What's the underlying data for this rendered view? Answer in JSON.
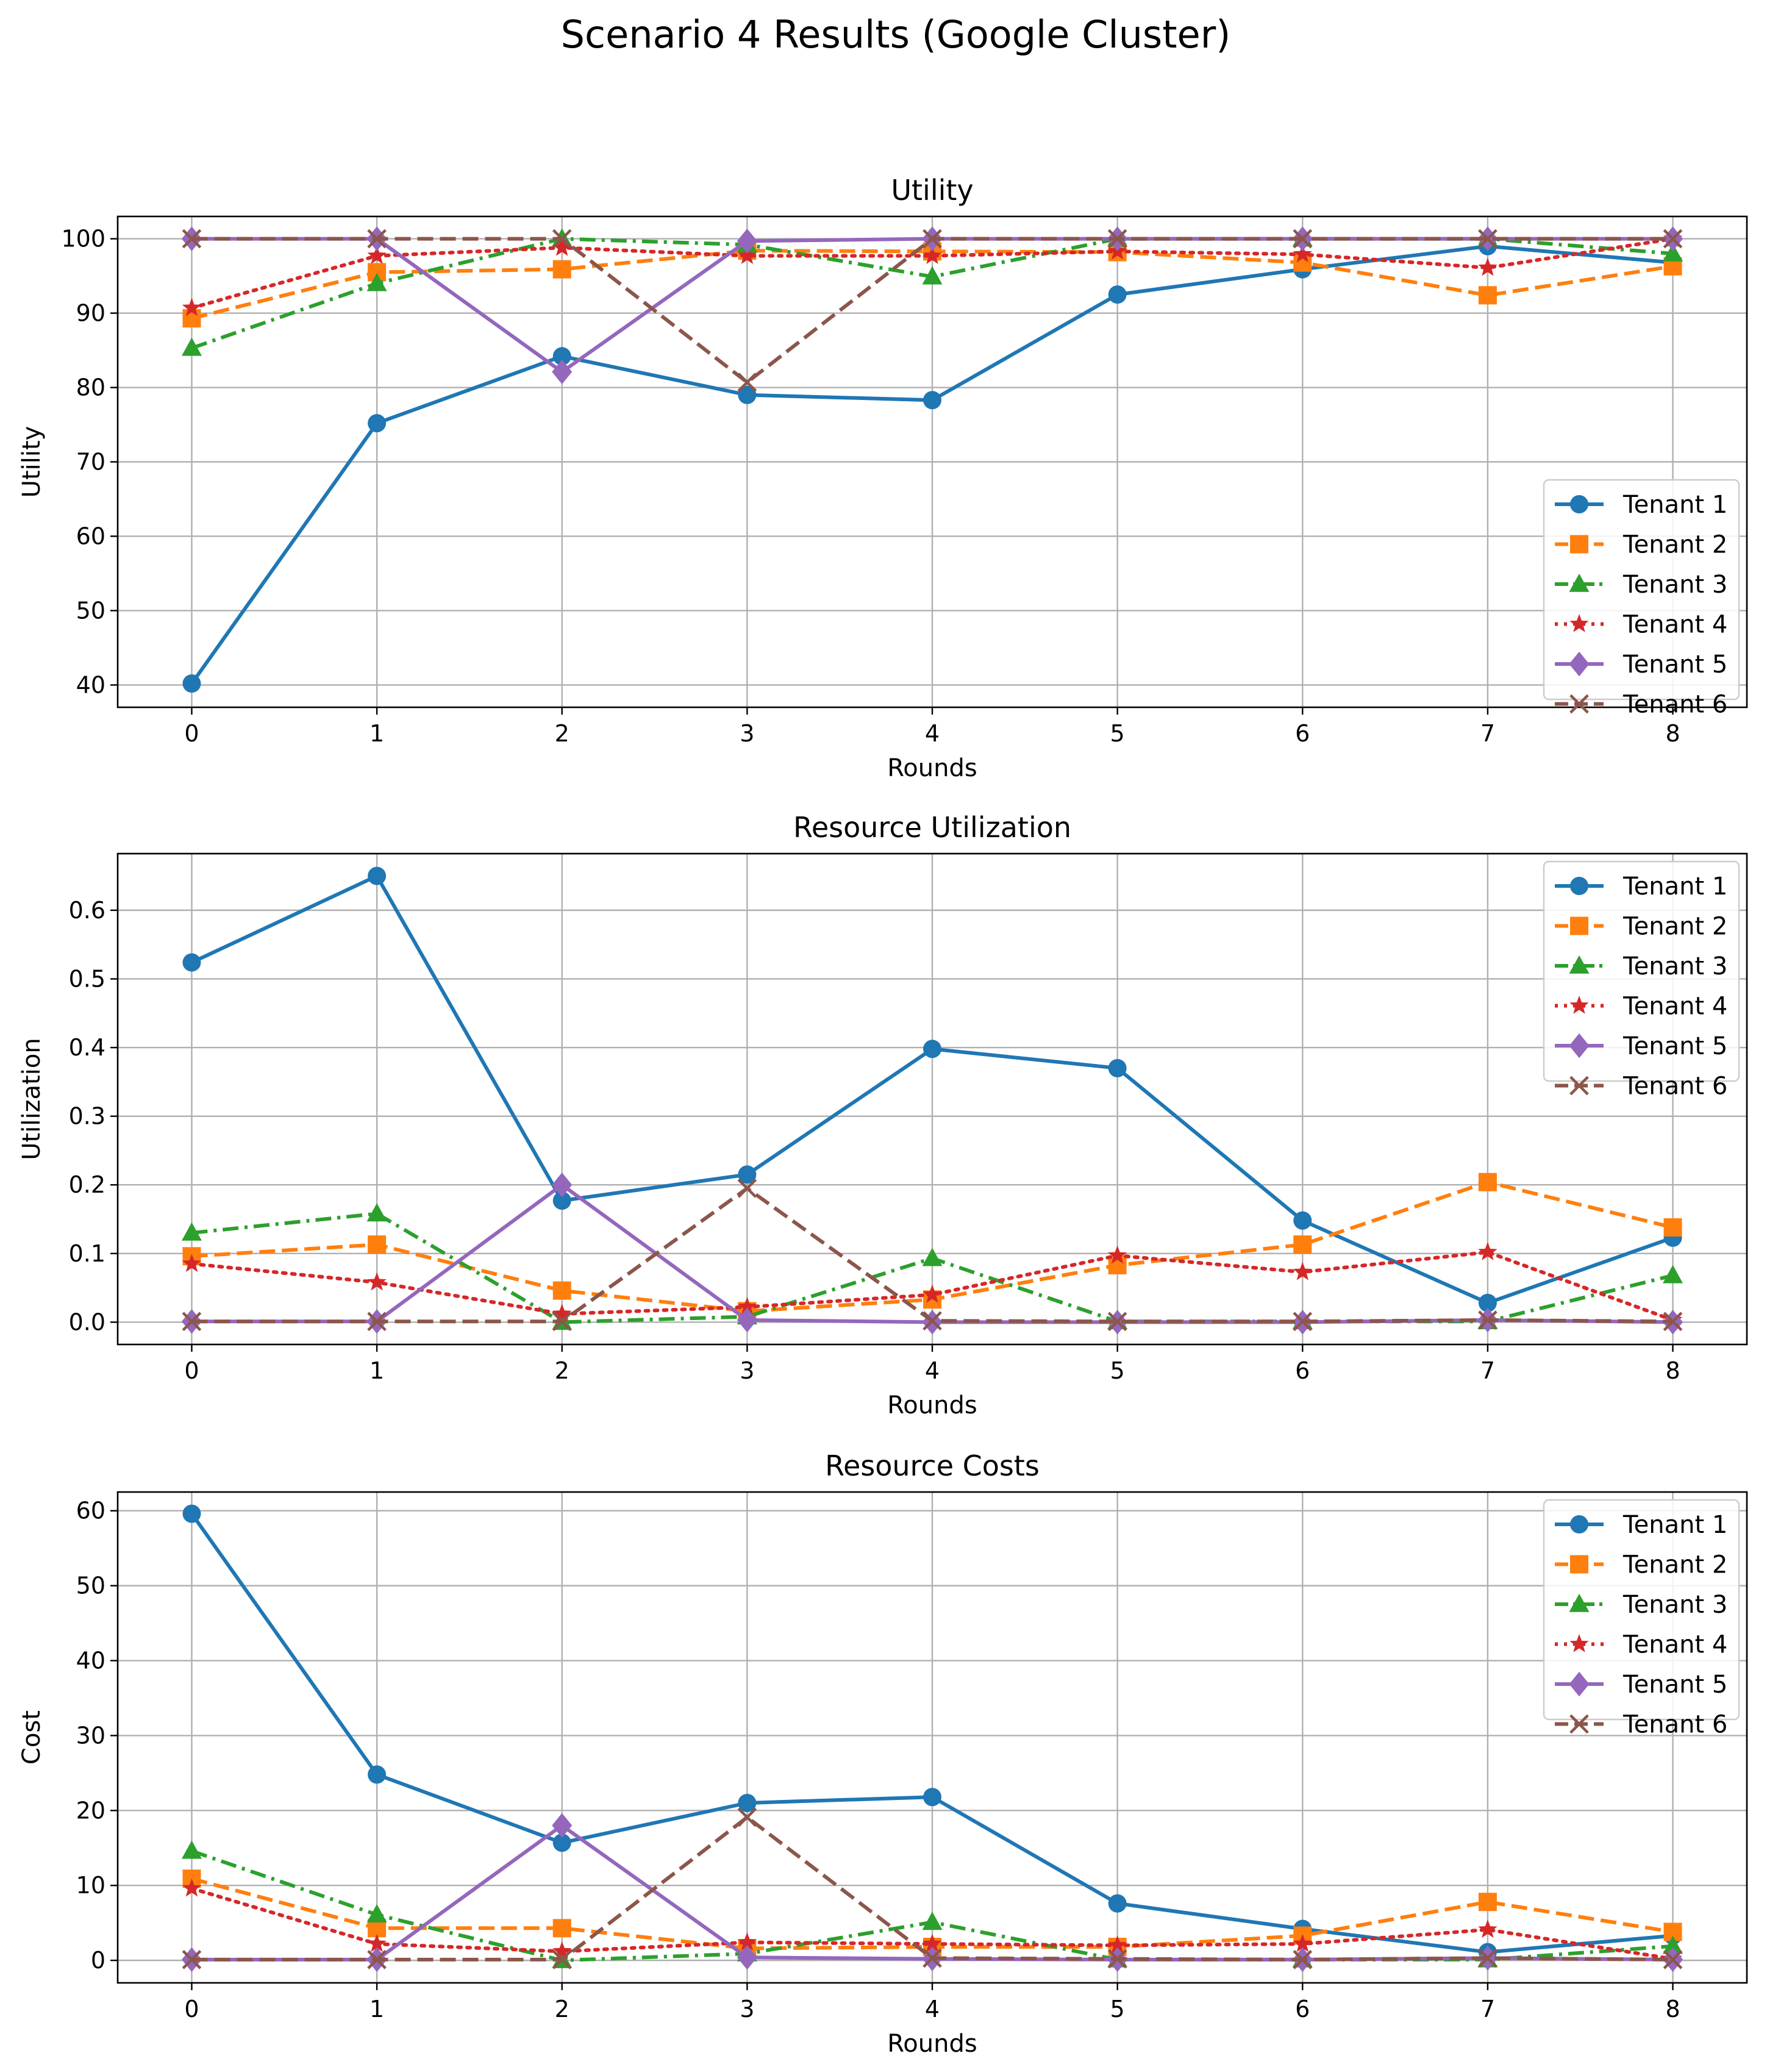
{
  "figure_title": "Scenario 4 Results (Google Cluster)",
  "series_styles": [
    {
      "name": "Tenant 1",
      "color": "#1f77b4",
      "dash": "",
      "marker": "circle"
    },
    {
      "name": "Tenant 2",
      "color": "#ff7f0e",
      "dash": "dashed",
      "marker": "square"
    },
    {
      "name": "Tenant 3",
      "color": "#2ca02c",
      "dash": "dashdot",
      "marker": "triangle"
    },
    {
      "name": "Tenant 4",
      "color": "#d62728",
      "dash": "dotted",
      "marker": "star"
    },
    {
      "name": "Tenant 5",
      "color": "#9467bd",
      "dash": "",
      "marker": "diamond"
    },
    {
      "name": "Tenant 6",
      "color": "#8c564b",
      "dash": "dashed",
      "marker": "x"
    }
  ],
  "chart_data": [
    {
      "type": "line",
      "title": "Utility",
      "xlabel": "Rounds",
      "ylabel": "Utility",
      "x": [
        0,
        1,
        2,
        3,
        4,
        5,
        6,
        7,
        8
      ],
      "xlim": [
        -0.4,
        8.4
      ],
      "ylim": [
        37,
        103
      ],
      "yticks": [
        40,
        50,
        60,
        70,
        80,
        90,
        100
      ],
      "ytick_labels": [
        "40",
        "50",
        "60",
        "70",
        "80",
        "90",
        "100"
      ],
      "grid": true,
      "legend": "lower right",
      "series": [
        {
          "name": "Tenant 1",
          "values": [
            40.2,
            75.2,
            84.2,
            79.0,
            78.3,
            92.5,
            95.9,
            99.0,
            96.8
          ]
        },
        {
          "name": "Tenant 2",
          "values": [
            89.3,
            95.5,
            95.9,
            98.4,
            98.3,
            98.2,
            96.8,
            92.4,
            96.3
          ]
        },
        {
          "name": "Tenant 3",
          "values": [
            85.3,
            94.0,
            100.0,
            99.2,
            94.9,
            100.0,
            100.0,
            100.0,
            98.0
          ]
        },
        {
          "name": "Tenant 4",
          "values": [
            90.7,
            97.7,
            98.8,
            97.7,
            97.7,
            98.3,
            97.9,
            96.1,
            100.0
          ]
        },
        {
          "name": "Tenant 5",
          "values": [
            100.0,
            100.0,
            82.1,
            99.7,
            100.0,
            100.0,
            100.0,
            100.0,
            100.0
          ]
        },
        {
          "name": "Tenant 6",
          "values": [
            100.0,
            100.0,
            100.0,
            80.7,
            100.0,
            100.0,
            100.0,
            100.0,
            100.0
          ]
        }
      ]
    },
    {
      "type": "line",
      "title": "Resource Utilization",
      "xlabel": "Rounds",
      "ylabel": "Utilization",
      "x": [
        0,
        1,
        2,
        3,
        4,
        5,
        6,
        7,
        8
      ],
      "xlim": [
        -0.4,
        8.4
      ],
      "ylim": [
        -0.0325,
        0.6825
      ],
      "yticks": [
        0.0,
        0.1,
        0.2,
        0.3,
        0.4,
        0.5,
        0.6
      ],
      "ytick_labels": [
        "0.0",
        "0.1",
        "0.2",
        "0.3",
        "0.4",
        "0.5",
        "0.6"
      ],
      "grid": true,
      "legend": "upper right",
      "series": [
        {
          "name": "Tenant 1",
          "values": [
            0.524,
            0.65,
            0.177,
            0.215,
            0.398,
            0.37,
            0.148,
            0.028,
            0.123
          ]
        },
        {
          "name": "Tenant 2",
          "values": [
            0.096,
            0.113,
            0.046,
            0.016,
            0.033,
            0.083,
            0.113,
            0.204,
            0.138
          ]
        },
        {
          "name": "Tenant 3",
          "values": [
            0.13,
            0.158,
            0.0,
            0.008,
            0.093,
            0.001,
            0.001,
            0.001,
            0.068
          ]
        },
        {
          "name": "Tenant 4",
          "values": [
            0.085,
            0.058,
            0.012,
            0.022,
            0.04,
            0.097,
            0.073,
            0.102,
            0.003
          ]
        },
        {
          "name": "Tenant 5",
          "values": [
            0.001,
            0.001,
            0.2,
            0.003,
            0.0,
            0.0,
            0.0,
            0.003,
            0.0
          ]
        },
        {
          "name": "Tenant 6",
          "values": [
            0.001,
            0.001,
            0.001,
            0.195,
            0.002,
            0.001,
            0.001,
            0.003,
            0.001
          ]
        }
      ]
    },
    {
      "type": "line",
      "title": "Resource Costs",
      "xlabel": "Rounds",
      "ylabel": "Cost",
      "x": [
        0,
        1,
        2,
        3,
        4,
        5,
        6,
        7,
        8
      ],
      "xlim": [
        -0.4,
        8.4
      ],
      "ylim": [
        -3.0,
        62.5
      ],
      "yticks": [
        0,
        10,
        20,
        30,
        40,
        50,
        60
      ],
      "ytick_labels": [
        "0",
        "10",
        "20",
        "30",
        "40",
        "50",
        "60"
      ],
      "grid": true,
      "legend": "upper right",
      "series": [
        {
          "name": "Tenant 1",
          "values": [
            59.6,
            24.8,
            15.7,
            21.0,
            21.8,
            7.6,
            4.2,
            1.1,
            3.3
          ]
        },
        {
          "name": "Tenant 2",
          "values": [
            10.9,
            4.3,
            4.3,
            1.6,
            1.8,
            1.8,
            3.3,
            7.8,
            3.8
          ]
        },
        {
          "name": "Tenant 3",
          "values": [
            14.6,
            6.1,
            0.0,
            0.9,
            5.1,
            0.1,
            0.1,
            0.1,
            1.9
          ]
        },
        {
          "name": "Tenant 4",
          "values": [
            9.6,
            2.2,
            1.2,
            2.4,
            2.2,
            2.0,
            2.2,
            4.1,
            0.2
          ]
        },
        {
          "name": "Tenant 5",
          "values": [
            0.1,
            0.1,
            18.0,
            0.4,
            0.2,
            0.1,
            0.1,
            0.3,
            0.1
          ]
        },
        {
          "name": "Tenant 6",
          "values": [
            0.1,
            0.1,
            0.1,
            19.1,
            0.3,
            0.2,
            0.1,
            0.3,
            0.1
          ]
        }
      ]
    }
  ]
}
